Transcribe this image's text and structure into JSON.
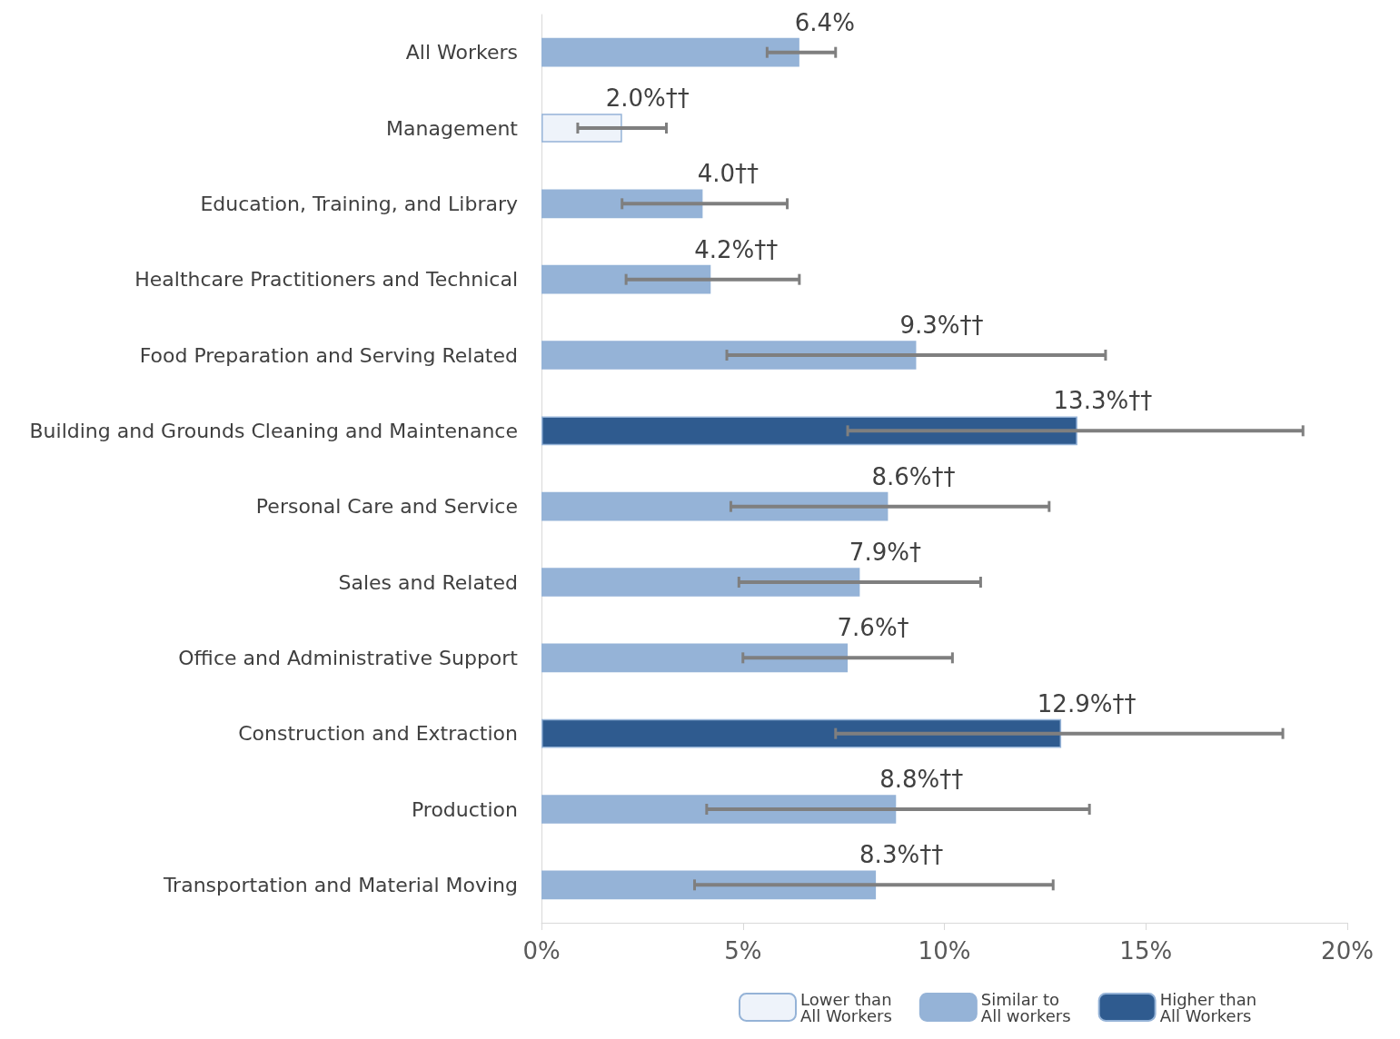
{
  "chart_data": {
    "type": "bar",
    "orientation": "horizontal",
    "categories": [
      "All Workers",
      "Management",
      "Education, Training, and Library",
      "Healthcare Practitioners and Technical",
      "Food Preparation and Serving Related",
      "Building and Grounds Cleaning and Maintenance",
      "Personal Care and Service",
      "Sales and Related",
      "Office and Administrative Support",
      "Construction and Extraction",
      "Production",
      "Transportation and Material Moving"
    ],
    "series": [
      {
        "name": "Lower than\nAll Workers",
        "color": "#eef3fa",
        "values": [
          null,
          2.0,
          null,
          null,
          null,
          null,
          null,
          null,
          null,
          null,
          null,
          null
        ],
        "errors": [
          null,
          [
            0.9,
            3.1
          ],
          null,
          null,
          null,
          null,
          null,
          null,
          null,
          null,
          null,
          null
        ],
        "value_labels": [
          null,
          "2.0%††",
          null,
          null,
          null,
          null,
          null,
          null,
          null,
          null,
          null,
          null
        ]
      },
      {
        "name": "Similar to\nAll workers",
        "color": "#95b3d7",
        "values": [
          6.4,
          null,
          4.0,
          4.2,
          9.3,
          null,
          8.6,
          7.9,
          7.6,
          null,
          8.8,
          8.3
        ],
        "errors": [
          [
            5.6,
            7.3
          ],
          null,
          [
            2.0,
            6.1
          ],
          [
            2.1,
            6.4
          ],
          [
            4.6,
            14.0
          ],
          null,
          [
            4.7,
            12.6
          ],
          [
            4.9,
            10.9
          ],
          [
            5.0,
            10.2
          ],
          null,
          [
            4.1,
            13.6
          ],
          [
            3.8,
            12.7
          ]
        ],
        "value_labels": [
          "6.4%",
          null,
          "4.0††",
          "4.2%††",
          "9.3%††",
          null,
          "8.6%††",
          "7.9%†",
          "7.6%†",
          null,
          "8.8%††",
          "8.3%††"
        ]
      },
      {
        "name": "Higher than\nAll Workers",
        "color": "#2f5b8f",
        "values": [
          null,
          null,
          null,
          null,
          null,
          13.3,
          null,
          null,
          null,
          12.9,
          null,
          null
        ],
        "errors": [
          null,
          null,
          null,
          null,
          null,
          [
            7.6,
            18.9
          ],
          null,
          null,
          null,
          [
            7.3,
            18.4
          ],
          null,
          null
        ],
        "value_labels": [
          null,
          null,
          null,
          null,
          null,
          "13.3%††",
          null,
          null,
          null,
          "12.9%††",
          null,
          null
        ]
      }
    ],
    "xlim": [
      0,
      20
    ],
    "xticks": [
      {
        "value": 0,
        "label": "0%"
      },
      {
        "value": 5,
        "label": "5%"
      },
      {
        "value": 10,
        "label": "10%"
      },
      {
        "value": 15,
        "label": "15%"
      },
      {
        "value": 20,
        "label": "20%"
      }
    ],
    "grid": false,
    "legend": "bottom"
  }
}
